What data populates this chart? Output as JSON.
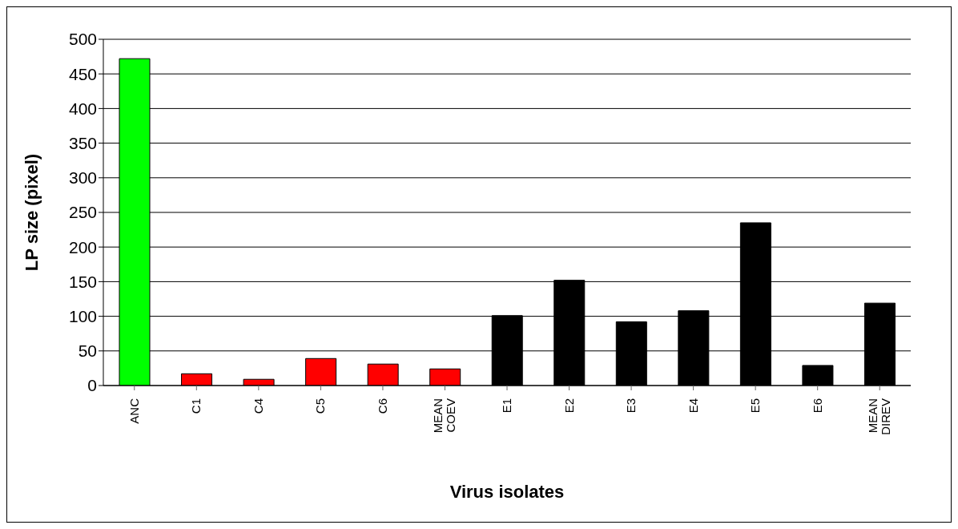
{
  "chart_data": {
    "type": "bar",
    "xlabel": "Virus isolates",
    "ylabel": "LP size (pixel)",
    "categories": [
      "ANC",
      "C1",
      "C4",
      "C5",
      "C6",
      "MEAN COEV",
      "E1",
      "E2",
      "E3",
      "E4",
      "E5",
      "E6",
      "MEAN DIREV"
    ],
    "values": [
      472,
      17,
      9,
      39,
      31,
      24,
      101,
      152,
      92,
      108,
      235,
      29,
      119
    ],
    "colors": [
      "#00ff00",
      "#ff0000",
      "#ff0000",
      "#ff0000",
      "#ff0000",
      "#ff0000",
      "#000000",
      "#000000",
      "#000000",
      "#000000",
      "#000000",
      "#000000",
      "#000000"
    ],
    "ylim": [
      0,
      500
    ],
    "yticks": [
      0,
      50,
      100,
      150,
      200,
      250,
      300,
      350,
      400,
      450,
      500
    ],
    "grid": "y",
    "legend": false
  }
}
